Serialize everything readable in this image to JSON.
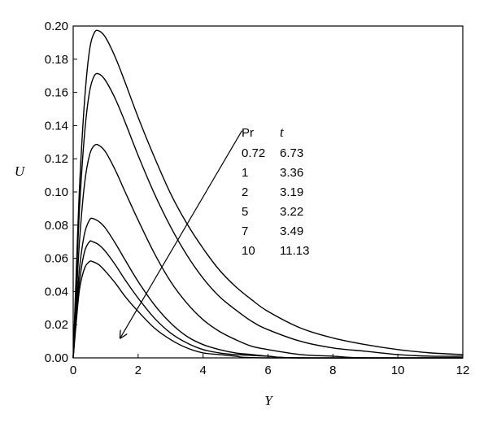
{
  "chart_data": {
    "type": "line",
    "title": "",
    "xlabel": "Y",
    "ylabel": "U",
    "xlim": [
      0,
      12
    ],
    "ylim": [
      0,
      0.2
    ],
    "xticks": [
      "0",
      "2",
      "4",
      "6",
      "8",
      "10",
      "12"
    ],
    "yticks": [
      "0.00",
      "0.02",
      "0.04",
      "0.06",
      "0.08",
      "0.10",
      "0.12",
      "0.14",
      "0.16",
      "0.18",
      "0.20"
    ],
    "grid": false,
    "legend": {
      "placement": "center-right",
      "header": {
        "col1": "Pr",
        "col2": "t"
      },
      "rows": [
        {
          "pr": "0.72",
          "t": "6.73"
        },
        {
          "pr": "1",
          "t": "3.36"
        },
        {
          "pr": "2",
          "t": "3.19"
        },
        {
          "pr": "5",
          "t": "3.22"
        },
        {
          "pr": "7",
          "t": "3.49"
        },
        {
          "pr": "10",
          "t": "11.13"
        }
      ]
    },
    "annotation": {
      "type": "arrow",
      "meaning": "increasing Pr",
      "from": [
        5.2,
        0.137
      ],
      "to": [
        1.45,
        0.012
      ]
    },
    "series": [
      {
        "points": [
          [
            0,
            0
          ],
          [
            0.1,
            0.055
          ],
          [
            0.2,
            0.105
          ],
          [
            0.35,
            0.155
          ],
          [
            0.5,
            0.185
          ],
          [
            0.65,
            0.196
          ],
          [
            0.8,
            0.197
          ],
          [
            1.0,
            0.193
          ],
          [
            1.3,
            0.181
          ],
          [
            1.6,
            0.166
          ],
          [
            2.0,
            0.145
          ],
          [
            2.5,
            0.121
          ],
          [
            3.0,
            0.099
          ],
          [
            3.5,
            0.081
          ],
          [
            4.0,
            0.066
          ],
          [
            4.5,
            0.053
          ],
          [
            5.0,
            0.043
          ],
          [
            5.5,
            0.035
          ],
          [
            6.0,
            0.028
          ],
          [
            7.0,
            0.018
          ],
          [
            8.0,
            0.012
          ],
          [
            9.0,
            0.008
          ],
          [
            10.0,
            0.005
          ],
          [
            11.0,
            0.003
          ],
          [
            12.0,
            0.002
          ]
        ]
      },
      {
        "points": [
          [
            0,
            0
          ],
          [
            0.1,
            0.048
          ],
          [
            0.2,
            0.092
          ],
          [
            0.35,
            0.135
          ],
          [
            0.5,
            0.16
          ],
          [
            0.65,
            0.17
          ],
          [
            0.8,
            0.171
          ],
          [
            1.0,
            0.167
          ],
          [
            1.3,
            0.156
          ],
          [
            1.6,
            0.142
          ],
          [
            2.0,
            0.122
          ],
          [
            2.5,
            0.099
          ],
          [
            3.0,
            0.079
          ],
          [
            3.5,
            0.062
          ],
          [
            4.0,
            0.048
          ],
          [
            4.5,
            0.037
          ],
          [
            5.0,
            0.029
          ],
          [
            5.5,
            0.022
          ],
          [
            6.0,
            0.017
          ],
          [
            7.0,
            0.01
          ],
          [
            8.0,
            0.006
          ],
          [
            9.0,
            0.004
          ],
          [
            10.0,
            0.002
          ],
          [
            11.0,
            0.001
          ],
          [
            12.0,
            0.001
          ]
        ]
      },
      {
        "points": [
          [
            0,
            0
          ],
          [
            0.1,
            0.038
          ],
          [
            0.2,
            0.072
          ],
          [
            0.35,
            0.105
          ],
          [
            0.5,
            0.122
          ],
          [
            0.65,
            0.128
          ],
          [
            0.8,
            0.128
          ],
          [
            1.0,
            0.124
          ],
          [
            1.3,
            0.113
          ],
          [
            1.6,
            0.1
          ],
          [
            2.0,
            0.083
          ],
          [
            2.5,
            0.063
          ],
          [
            3.0,
            0.046
          ],
          [
            3.5,
            0.033
          ],
          [
            4.0,
            0.023
          ],
          [
            4.5,
            0.016
          ],
          [
            5.0,
            0.011
          ],
          [
            5.5,
            0.007
          ],
          [
            6.0,
            0.005
          ],
          [
            7.0,
            0.002
          ],
          [
            8.0,
            0.001
          ],
          [
            9.0,
            0.0
          ],
          [
            12.0,
            0.0
          ]
        ]
      },
      {
        "points": [
          [
            0,
            0
          ],
          [
            0.1,
            0.03
          ],
          [
            0.2,
            0.055
          ],
          [
            0.35,
            0.075
          ],
          [
            0.5,
            0.083
          ],
          [
            0.6,
            0.084
          ],
          [
            0.8,
            0.082
          ],
          [
            1.0,
            0.078
          ],
          [
            1.3,
            0.069
          ],
          [
            1.6,
            0.059
          ],
          [
            2.0,
            0.046
          ],
          [
            2.5,
            0.032
          ],
          [
            3.0,
            0.021
          ],
          [
            3.5,
            0.013
          ],
          [
            4.0,
            0.008
          ],
          [
            4.5,
            0.005
          ],
          [
            5.0,
            0.003
          ],
          [
            5.5,
            0.002
          ],
          [
            6.0,
            0.001
          ],
          [
            7.0,
            0.0
          ],
          [
            12.0,
            0.0
          ]
        ]
      },
      {
        "points": [
          [
            0,
            0
          ],
          [
            0.1,
            0.026
          ],
          [
            0.2,
            0.047
          ],
          [
            0.35,
            0.064
          ],
          [
            0.5,
            0.07
          ],
          [
            0.6,
            0.07
          ],
          [
            0.8,
            0.068
          ],
          [
            1.0,
            0.064
          ],
          [
            1.3,
            0.056
          ],
          [
            1.6,
            0.047
          ],
          [
            2.0,
            0.036
          ],
          [
            2.5,
            0.024
          ],
          [
            3.0,
            0.015
          ],
          [
            3.5,
            0.009
          ],
          [
            4.0,
            0.005
          ],
          [
            4.5,
            0.003
          ],
          [
            5.0,
            0.002
          ],
          [
            6.0,
            0.001
          ],
          [
            7.0,
            0.0
          ],
          [
            12.0,
            0.0
          ]
        ]
      },
      {
        "points": [
          [
            0,
            0
          ],
          [
            0.1,
            0.023
          ],
          [
            0.2,
            0.042
          ],
          [
            0.35,
            0.054
          ],
          [
            0.5,
            0.058
          ],
          [
            0.6,
            0.058
          ],
          [
            0.8,
            0.056
          ],
          [
            1.0,
            0.052
          ],
          [
            1.3,
            0.045
          ],
          [
            1.6,
            0.037
          ],
          [
            2.0,
            0.028
          ],
          [
            2.5,
            0.018
          ],
          [
            3.0,
            0.011
          ],
          [
            3.5,
            0.006
          ],
          [
            4.0,
            0.003
          ],
          [
            4.5,
            0.002
          ],
          [
            5.0,
            0.001
          ],
          [
            6.0,
            0.0
          ],
          [
            12.0,
            0.0
          ]
        ]
      }
    ]
  }
}
